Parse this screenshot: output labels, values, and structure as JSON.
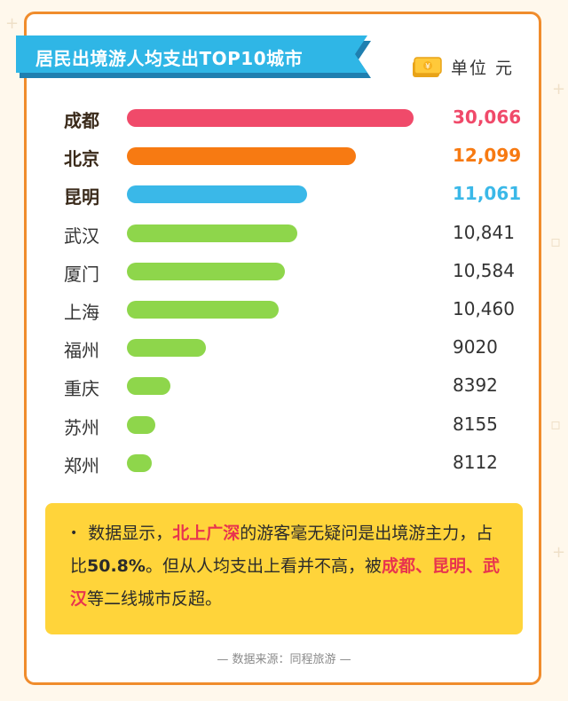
{
  "title": "居民出境游人均支出TOP10城市",
  "unit_label": "单位 元",
  "colors": {
    "border": "#f08c2c",
    "banner": "#2fb6e6",
    "top1": "#f04a6a",
    "top2": "#f77a12",
    "top3": "#3ab8e8",
    "rest": "#8ed64b",
    "note_bg": "#ffd43a",
    "highlight": "#e8344e"
  },
  "chart_data": {
    "type": "bar",
    "orientation": "horizontal",
    "title": "居民出境游人均支出TOP10城市",
    "unit": "元",
    "categories": [
      "成都",
      "北京",
      "昆明",
      "武汉",
      "厦门",
      "上海",
      "福州",
      "重庆",
      "苏州",
      "郑州"
    ],
    "values": [
      30066,
      12099,
      11061,
      10841,
      10584,
      10460,
      9020,
      8392,
      8155,
      8112
    ],
    "value_labels": [
      "30,066",
      "12,099",
      "11,061",
      "10,841",
      "10,584",
      "10,460",
      "9020",
      "8392",
      "8155",
      "8112"
    ],
    "bar_colors": [
      "#f04a6a",
      "#f77a12",
      "#3ab8e8",
      "#8ed64b",
      "#8ed64b",
      "#8ed64b",
      "#8ed64b",
      "#8ed64b",
      "#8ed64b",
      "#8ed64b"
    ],
    "highlight_rows": [
      0,
      1,
      2
    ]
  },
  "note": {
    "bullet": "•",
    "p1": "数据显示，",
    "hl1": "北上广深",
    "p2": "的游客毫无疑问是出境游主力，占比",
    "pct": "50.8%",
    "p3": "。但从人均支出上看并不高，被",
    "hl2": "成都、昆明、武汉",
    "p4": "等二线城市反超。"
  },
  "source": "— 数据来源：同程旅游 —"
}
